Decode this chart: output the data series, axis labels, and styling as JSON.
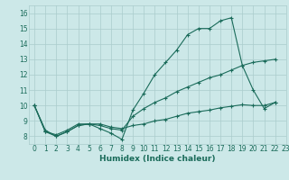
{
  "title": "",
  "xlabel": "Humidex (Indice chaleur)",
  "bg_color": "#cce8e8",
  "line_color": "#1a6b5a",
  "grid_color": "#aacccc",
  "xlim": [
    -0.5,
    23
  ],
  "ylim": [
    7.5,
    16.5
  ],
  "yticks": [
    8,
    9,
    10,
    11,
    12,
    13,
    14,
    15,
    16
  ],
  "xticks": [
    0,
    1,
    2,
    3,
    4,
    5,
    6,
    7,
    8,
    9,
    10,
    11,
    12,
    13,
    14,
    15,
    16,
    17,
    18,
    19,
    20,
    21,
    22,
    23
  ],
  "series1": [
    [
      0,
      10.0
    ],
    [
      1,
      8.3
    ],
    [
      2,
      8.0
    ],
    [
      3,
      8.3
    ],
    [
      4,
      8.7
    ],
    [
      5,
      8.8
    ],
    [
      6,
      8.5
    ],
    [
      7,
      8.2
    ],
    [
      8,
      7.8
    ],
    [
      9,
      9.7
    ],
    [
      10,
      10.8
    ],
    [
      11,
      12.0
    ],
    [
      12,
      12.8
    ],
    [
      13,
      13.6
    ],
    [
      14,
      14.6
    ],
    [
      15,
      15.0
    ],
    [
      16,
      15.0
    ],
    [
      17,
      15.5
    ],
    [
      18,
      15.7
    ],
    [
      19,
      12.6
    ],
    [
      20,
      11.0
    ],
    [
      21,
      9.8
    ],
    [
      22,
      10.2
    ]
  ],
  "series2": [
    [
      0,
      10.0
    ],
    [
      1,
      8.3
    ],
    [
      2,
      8.1
    ],
    [
      3,
      8.4
    ],
    [
      4,
      8.8
    ],
    [
      5,
      8.8
    ],
    [
      6,
      8.7
    ],
    [
      7,
      8.5
    ],
    [
      8,
      8.4
    ],
    [
      9,
      9.3
    ],
    [
      10,
      9.8
    ],
    [
      11,
      10.2
    ],
    [
      12,
      10.5
    ],
    [
      13,
      10.9
    ],
    [
      14,
      11.2
    ],
    [
      15,
      11.5
    ],
    [
      16,
      11.8
    ],
    [
      17,
      12.0
    ],
    [
      18,
      12.3
    ],
    [
      19,
      12.6
    ],
    [
      20,
      12.8
    ],
    [
      21,
      12.9
    ],
    [
      22,
      13.0
    ]
  ],
  "series3": [
    [
      0,
      10.0
    ],
    [
      1,
      8.4
    ],
    [
      2,
      8.0
    ],
    [
      3,
      8.3
    ],
    [
      4,
      8.7
    ],
    [
      5,
      8.8
    ],
    [
      6,
      8.8
    ],
    [
      7,
      8.6
    ],
    [
      8,
      8.5
    ],
    [
      9,
      8.7
    ],
    [
      10,
      8.8
    ],
    [
      11,
      9.0
    ],
    [
      12,
      9.1
    ],
    [
      13,
      9.3
    ],
    [
      14,
      9.5
    ],
    [
      15,
      9.6
    ],
    [
      16,
      9.7
    ],
    [
      17,
      9.85
    ],
    [
      18,
      9.95
    ],
    [
      19,
      10.05
    ],
    [
      20,
      10.0
    ],
    [
      21,
      10.0
    ],
    [
      22,
      10.2
    ]
  ]
}
